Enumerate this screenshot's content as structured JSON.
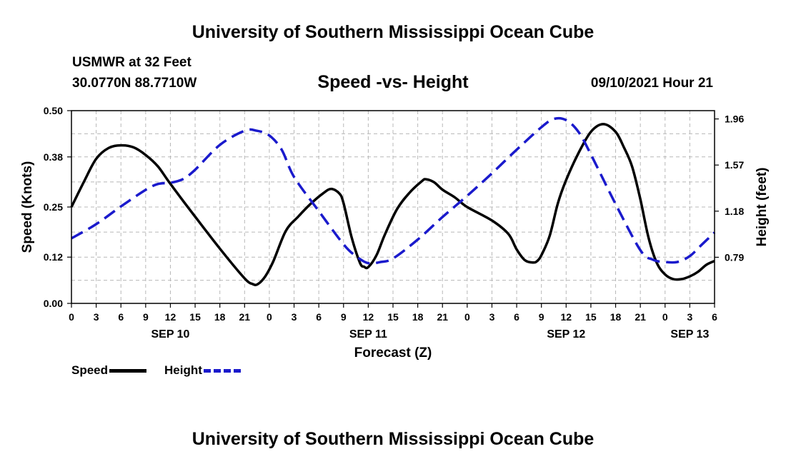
{
  "header": {
    "title": "University of Southern Mississippi Ocean Cube",
    "station": "USMWR at 32 Feet",
    "coords": "30.0770N  88.7710W",
    "subtitle": "Speed -vs- Height",
    "datetime": "09/10/2021 Hour 21"
  },
  "footer": {
    "title": "University of Southern Mississippi Ocean Cube"
  },
  "legend": {
    "speed_label": "Speed",
    "height_label": "Height",
    "speed_color": "#000000",
    "height_color": "#1a1acc"
  },
  "chart_data": {
    "type": "line",
    "title": "Speed -vs- Height",
    "xlabel": "Forecast (Z)",
    "ylabel": "Speed (Knots)",
    "y2label": "Height (feet)",
    "xlim": [
      0,
      78
    ],
    "ylim": [
      0,
      0.5
    ],
    "y2lim": [
      0.4,
      2.03
    ],
    "grid": true,
    "legend_position": "bottom-left",
    "x_ticks": [
      0,
      3,
      6,
      9,
      12,
      15,
      18,
      21,
      24,
      27,
      30,
      33,
      36,
      39,
      42,
      45,
      48,
      51,
      54,
      57,
      60,
      63,
      66,
      69,
      72,
      75,
      78
    ],
    "x_tick_labels": [
      "0",
      "3",
      "6",
      "9",
      "12",
      "15",
      "18",
      "21",
      "0",
      "3",
      "6",
      "9",
      "12",
      "15",
      "18",
      "21",
      "0",
      "3",
      "6",
      "9",
      "12",
      "15",
      "18",
      "21",
      "0",
      "3",
      "6"
    ],
    "day_labels": [
      {
        "x": 12,
        "label": "SEP 10"
      },
      {
        "x": 36,
        "label": "SEP 11"
      },
      {
        "x": 60,
        "label": "SEP 12"
      },
      {
        "x": 75,
        "label": "SEP 13"
      }
    ],
    "y_ticks": [
      0.0,
      0.12,
      0.25,
      0.38,
      0.5
    ],
    "y_tick_labels": [
      "0.00",
      "0.12",
      "0.25",
      "0.38",
      "0.50"
    ],
    "y2_ticks": [
      0.79,
      1.18,
      1.57,
      1.96
    ],
    "y2_tick_labels": [
      "0.79",
      "1.18",
      "1.57",
      "1.96"
    ],
    "series": [
      {
        "name": "Speed",
        "axis": "left",
        "color": "#000000",
        "dash": "solid",
        "x": [
          0,
          1.5,
          3,
          4.5,
          6,
          7.5,
          9,
          10.5,
          12,
          15,
          18,
          21,
          22,
          22.6,
          23.5,
          24.5,
          26,
          27.5,
          29,
          30.5,
          31.5,
          32.5,
          33,
          34,
          35,
          35.5,
          36,
          37,
          38,
          39.5,
          41,
          42.5,
          43,
          44,
          45,
          46.5,
          48,
          51,
          53,
          54,
          55,
          56,
          56.5,
          57,
          58,
          59,
          60,
          61.5,
          63,
          64.5,
          66,
          67,
          68,
          69,
          70,
          71,
          72,
          73,
          74,
          75,
          76,
          77,
          78
        ],
        "y": [
          0.25,
          0.315,
          0.375,
          0.403,
          0.41,
          0.405,
          0.385,
          0.355,
          0.31,
          0.225,
          0.142,
          0.065,
          0.05,
          0.05,
          0.07,
          0.11,
          0.188,
          0.225,
          0.258,
          0.285,
          0.297,
          0.285,
          0.26,
          0.17,
          0.105,
          0.095,
          0.094,
          0.125,
          0.178,
          0.245,
          0.287,
          0.317,
          0.322,
          0.314,
          0.295,
          0.275,
          0.25,
          0.215,
          0.18,
          0.14,
          0.112,
          0.106,
          0.11,
          0.125,
          0.175,
          0.26,
          0.32,
          0.39,
          0.445,
          0.465,
          0.445,
          0.405,
          0.355,
          0.27,
          0.17,
          0.105,
          0.075,
          0.063,
          0.063,
          0.07,
          0.082,
          0.1,
          0.11
        ]
      },
      {
        "name": "Height",
        "axis": "right",
        "color": "#1a1acc",
        "dash": "dashed",
        "x": [
          0,
          3,
          6,
          9,
          10.5,
          12,
          13.5,
          15,
          18,
          21,
          22.5,
          24,
          25.5,
          27,
          30,
          33,
          34.5,
          36,
          37.5,
          39,
          42,
          45,
          48,
          51,
          54,
          57,
          58.5,
          60,
          61.5,
          63,
          66,
          69,
          70.5,
          72,
          73.5,
          75,
          76.5,
          78
        ],
        "y": [
          0.95,
          1.07,
          1.22,
          1.36,
          1.41,
          1.42,
          1.45,
          1.53,
          1.74,
          1.86,
          1.86,
          1.82,
          1.7,
          1.47,
          1.18,
          0.9,
          0.8,
          0.74,
          0.75,
          0.78,
          0.94,
          1.13,
          1.31,
          1.5,
          1.7,
          1.89,
          1.96,
          1.95,
          1.85,
          1.66,
          1.24,
          0.85,
          0.77,
          0.75,
          0.75,
          0.8,
          0.9,
          1.0
        ]
      }
    ]
  }
}
